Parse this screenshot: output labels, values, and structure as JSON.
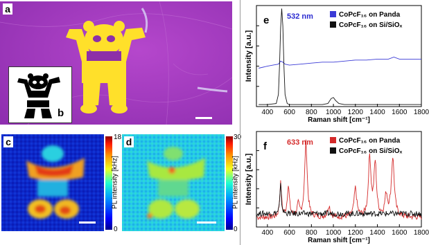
{
  "panels": {
    "a": {
      "label": "a"
    },
    "b": {
      "label": "b"
    },
    "c": {
      "label": "c",
      "colorbar": {
        "max": "18",
        "min": "0",
        "label": "PL intensity [kHz]"
      }
    },
    "d": {
      "label": "d",
      "colorbar": {
        "max": "30",
        "min": "0",
        "label": "PL intensity [kHz]"
      }
    },
    "e": {
      "label": "e"
    },
    "f": {
      "label": "f"
    }
  },
  "colors": {
    "magenta_bg": "#b03dc6",
    "panda_yellow": "#ffe02a",
    "spectrum_panda_532": "#3a3ad6",
    "spectrum_si": "#111111",
    "spectrum_panda_633": "#d42a2a"
  },
  "chart_data": [
    {
      "type": "line",
      "panel": "e",
      "annotation": "532 nm",
      "xlabel": "Raman shift [cm⁻¹]",
      "ylabel": "Intensity [a.u.]",
      "xlim": [
        300,
        1800
      ],
      "xticks": [
        400,
        600,
        800,
        1000,
        1200,
        1400,
        1600,
        1800
      ],
      "legend": {
        "placement": "top-right",
        "entries": [
          {
            "name": "CoPcF₁₆ on Panda",
            "color": "#3a3ad6"
          },
          {
            "name": "CoPcF₁₆ on Si/SiOₓ",
            "color": "#111111"
          }
        ]
      },
      "series": [
        {
          "name": "CoPcF₁₆ on Panda",
          "x": [
            320,
            400,
            450,
            500,
            520,
            540,
            560,
            600,
            700,
            800,
            900,
            1000,
            1100,
            1200,
            1300,
            1400,
            1500,
            1550,
            1600,
            1700,
            1800
          ],
          "y": [
            0.38,
            0.4,
            0.41,
            0.42,
            0.45,
            0.44,
            0.42,
            0.41,
            0.42,
            0.43,
            0.44,
            0.44,
            0.45,
            0.46,
            0.46,
            0.47,
            0.47,
            0.49,
            0.47,
            0.47,
            0.47
          ]
        },
        {
          "name": "CoPcF₁₆ on Si/SiOₓ",
          "x": [
            320,
            400,
            480,
            500,
            510,
            520,
            530,
            540,
            550,
            560,
            580,
            600,
            700,
            800,
            900,
            950,
            980,
            1000,
            1020,
            1050,
            1100,
            1200,
            1400,
            1600,
            1800
          ],
          "y": [
            0.02,
            0.02,
            0.03,
            0.12,
            0.4,
            0.78,
            0.97,
            0.8,
            0.4,
            0.12,
            0.03,
            0.02,
            0.02,
            0.02,
            0.02,
            0.03,
            0.08,
            0.09,
            0.06,
            0.03,
            0.02,
            0.02,
            0.02,
            0.02,
            0.02
          ]
        }
      ]
    },
    {
      "type": "line",
      "panel": "f",
      "annotation": "633 nm",
      "xlabel": "Raman shift [cm⁻¹]",
      "ylabel": "Intensity [a.u.]",
      "xlim": [
        300,
        1800
      ],
      "xticks": [
        400,
        600,
        800,
        1000,
        1200,
        1400,
        1600,
        1800
      ],
      "legend": {
        "placement": "top-right",
        "entries": [
          {
            "name": "CoPcF₁₆ on Panda",
            "color": "#d42a2a"
          },
          {
            "name": "CoPcF₁₆ on Si/SiOₓ",
            "color": "#111111"
          }
        ]
      },
      "series": [
        {
          "name": "CoPcF₁₆ on Panda",
          "peaks": [
            [
              520,
              0.35,
              10
            ],
            [
              590,
              0.32,
              12
            ],
            [
              680,
              0.12,
              12
            ],
            [
              750,
              0.78,
              14
            ],
            [
              960,
              0.12,
              14
            ],
            [
              1200,
              0.3,
              14
            ],
            [
              1330,
              0.62,
              14
            ],
            [
              1380,
              0.55,
              14
            ],
            [
              1480,
              0.22,
              14
            ],
            [
              1540,
              0.62,
              16
            ]
          ],
          "baseline": 0.1
        },
        {
          "name": "CoPcF₁₆ on Si/SiOₓ",
          "peaks": [
            [
              520,
              0.3,
              8
            ]
          ],
          "baseline": 0.14
        }
      ]
    }
  ]
}
